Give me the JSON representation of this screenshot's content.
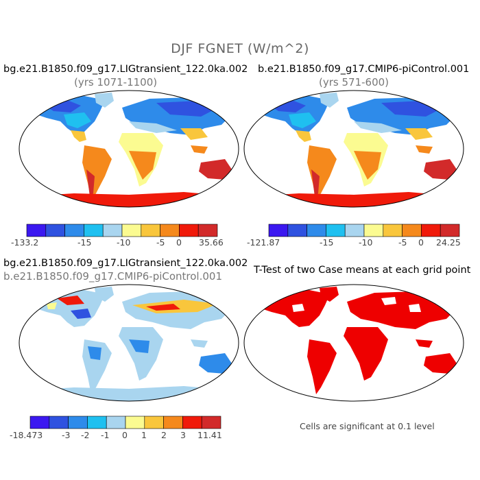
{
  "figure": {
    "title": "DJF FGNET (W/m^2)"
  },
  "panels": [
    {
      "title": "bg.e21.B1850.f09_g17.LIGtransient_122.0ka.002",
      "subtitle": "(yrs 1071-1100)",
      "colorbar": {
        "colors": [
          "#3b18f0",
          "#2f52e0",
          "#2e8bea",
          "#1fc0f0",
          "#a9d5ef",
          "#fbfb91",
          "#f9c63c",
          "#f5891c",
          "#f01a0a",
          "#d22a2a"
        ],
        "labels": [
          "-133.2",
          "-15",
          "-10",
          "-5",
          "0",
          "35.66"
        ]
      }
    },
    {
      "title": "b.e21.B1850.f09_g17.CMIP6-piControl.001",
      "subtitle": "(yrs 571-600)",
      "colorbar": {
        "colors": [
          "#3b18f0",
          "#2f52e0",
          "#2e8bea",
          "#1fc0f0",
          "#a9d5ef",
          "#fbfb91",
          "#f9c63c",
          "#f5891c",
          "#f01a0a",
          "#d22a2a"
        ],
        "labels": [
          "-121.87",
          "-15",
          "-10",
          "-5",
          "0",
          "24.25"
        ]
      }
    },
    {
      "title": "bg.e21.B1850.f09_g17.LIGtransient_122.0ka.002",
      "subtitle": "b.e21.B1850.f09_g17.CMIP6-piControl.001",
      "colorbar": {
        "colors": [
          "#3b18f0",
          "#2f52e0",
          "#2e8bea",
          "#1fc0f0",
          "#a9d5ef",
          "#fbfb91",
          "#f9c63c",
          "#f5891c",
          "#f01a0a",
          "#d22a2a"
        ],
        "labels": [
          "-18.473",
          "-3",
          "-2",
          "-1",
          "0",
          "1",
          "2",
          "3",
          "11.41"
        ]
      }
    },
    {
      "title": "T-Test of two Case means at each grid point",
      "note": "Cells are significant at 0.1 level",
      "color": "#ee0000"
    }
  ]
}
